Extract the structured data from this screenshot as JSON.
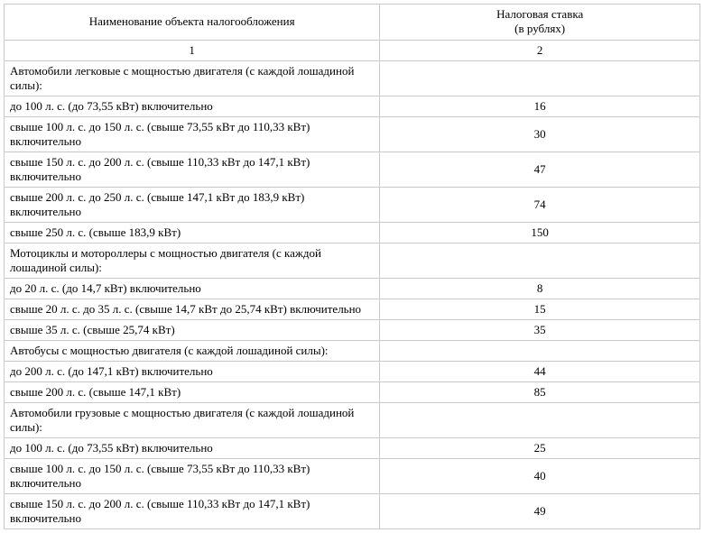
{
  "table": {
    "type": "table",
    "background_color": "#ffffff",
    "border_color": "#c9c9c9",
    "font_family": "Times New Roman",
    "font_size_pt": 10,
    "text_color": "#000000",
    "columns": [
      {
        "header": "Наименование объекта налогообложения",
        "subhead": "1",
        "align": "left",
        "width_pct": 54
      },
      {
        "header": "Налоговая ставка\n(в рублях)",
        "subhead": "2",
        "align": "center",
        "width_pct": 46
      }
    ],
    "rows": [
      {
        "label": "Автомобили легковые с мощностью двигателя (с каждой лошадиной силы):",
        "rate": ""
      },
      {
        "label": "до 100 л. с. (до 73,55 кВт) включительно",
        "rate": "16"
      },
      {
        "label": "свыше 100 л. с. до 150 л. с. (свыше 73,55 кВт до 110,33 кВт) включительно",
        "rate": "30"
      },
      {
        "label": "свыше 150 л. с. до 200 л. с. (свыше 110,33 кВт до 147,1 кВт) включительно",
        "rate": "47"
      },
      {
        "label": "свыше 200 л. с. до 250 л. с. (свыше 147,1 кВт до 183,9 кВт) включительно",
        "rate": "74"
      },
      {
        "label": "свыше 250 л. с. (свыше 183,9 кВт)",
        "rate": "150"
      },
      {
        "label": "Мотоциклы и мотороллеры с мощностью двигателя (с каждой лошадиной силы):",
        "rate": ""
      },
      {
        "label": "до 20 л. с. (до 14,7 кВт) включительно",
        "rate": "8"
      },
      {
        "label": "свыше 20 л. с. до 35 л. с. (свыше 14,7 кВт до 25,74 кВт) включительно",
        "rate": "15"
      },
      {
        "label": "свыше 35 л. с. (свыше 25,74 кВт)",
        "rate": "35"
      },
      {
        "label": "Автобусы с мощностью двигателя (с каждой лошадиной силы):",
        "rate": ""
      },
      {
        "label": "до 200 л. с. (до 147,1 кВт) включительно",
        "rate": "44"
      },
      {
        "label": "свыше 200 л. с. (свыше 147,1 кВт)",
        "rate": "85"
      },
      {
        "label": "Автомобили грузовые с мощностью двигателя (с каждой лошадиной силы):",
        "rate": ""
      },
      {
        "label": "до 100 л. с. (до 73,55 кВт) включительно",
        "rate": "25"
      },
      {
        "label": "свыше 100 л. с. до 150 л. с. (свыше 73,55 кВт до 110,33 кВт) включительно",
        "rate": "40"
      },
      {
        "label": "свыше 150 л. с. до 200 л. с. (свыше 110,33 кВт до 147,1 кВт) включительно",
        "rate": "49"
      }
    ]
  }
}
